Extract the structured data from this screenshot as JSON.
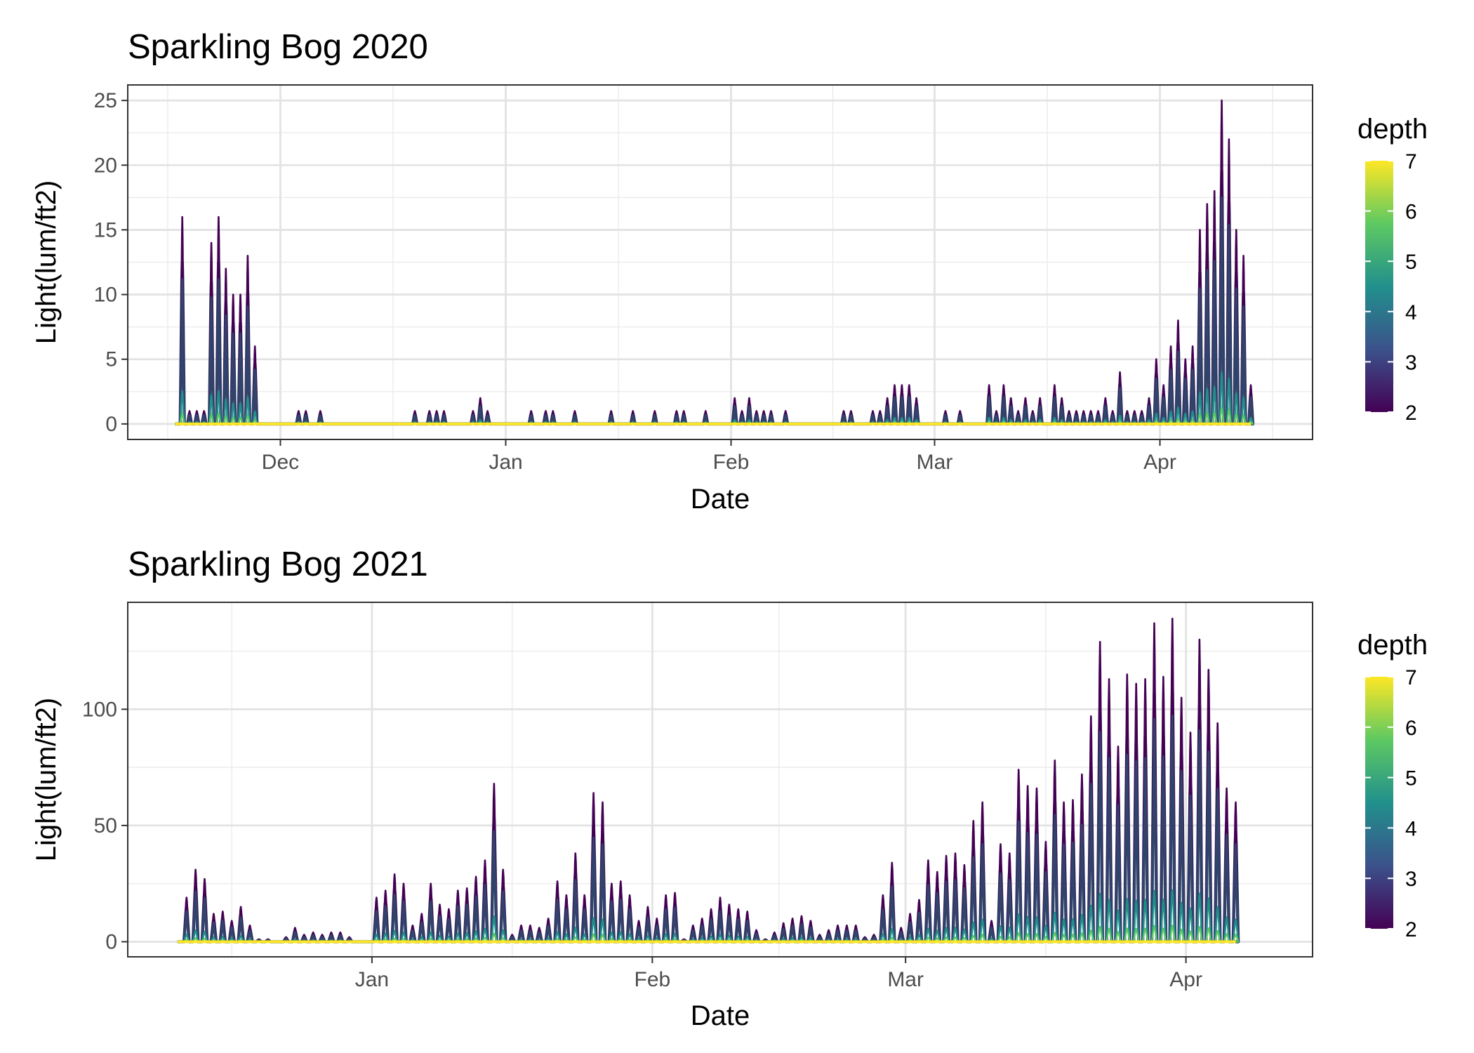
{
  "chart_data": [
    {
      "type": "line",
      "title": "Sparkling Bog 2020",
      "xlabel": "Date",
      "ylabel": "Light(lum/ft2)",
      "x_range": [
        "2020-11-10",
        "2021-04-22"
      ],
      "ylim": [
        -1.2,
        26.2
      ],
      "x_ticks": [
        {
          "date": "2020-12-01",
          "label": "Dec"
        },
        {
          "date": "2021-01-01",
          "label": "Jan"
        },
        {
          "date": "2021-02-01",
          "label": "Feb"
        },
        {
          "date": "2021-03-01",
          "label": "Mar"
        },
        {
          "date": "2021-04-01",
          "label": "Apr"
        }
      ],
      "y_ticks": [
        0,
        5,
        10,
        15,
        20,
        25
      ],
      "grid": true,
      "legend": {
        "title": "depth",
        "type": "colorbar",
        "min": 2,
        "max": 7,
        "ticks": [
          2,
          3,
          4,
          5,
          6,
          7
        ],
        "palette": [
          "#440154",
          "#3b528b",
          "#21908c",
          "#5ec962",
          "#fde725"
        ]
      },
      "colors": {
        "depth_2": "#440154",
        "depth_3": "#31446b",
        "depth_4": "#21908c",
        "depth_5": "#5ec962",
        "depth_7": "#fde725"
      },
      "x_end": "2021-04-13",
      "peaks": [
        [
          "2020-11-17",
          16
        ],
        [
          "2020-11-18",
          1
        ],
        [
          "2020-11-19",
          1
        ],
        [
          "2020-11-20",
          1
        ],
        [
          "2020-11-21",
          14
        ],
        [
          "2020-11-22",
          16
        ],
        [
          "2020-11-23",
          12
        ],
        [
          "2020-11-24",
          10
        ],
        [
          "2020-11-25",
          10
        ],
        [
          "2020-11-26",
          13
        ],
        [
          "2020-11-27",
          6
        ],
        [
          "2020-12-03",
          1
        ],
        [
          "2020-12-04",
          1
        ],
        [
          "2020-12-06",
          1
        ],
        [
          "2020-12-19",
          1
        ],
        [
          "2020-12-21",
          1
        ],
        [
          "2020-12-22",
          1
        ],
        [
          "2020-12-23",
          1
        ],
        [
          "2020-12-27",
          1
        ],
        [
          "2020-12-28",
          2
        ],
        [
          "2020-12-29",
          1
        ],
        [
          "2021-01-04",
          1
        ],
        [
          "2021-01-06",
          1
        ],
        [
          "2021-01-07",
          1
        ],
        [
          "2021-01-10",
          1
        ],
        [
          "2021-01-15",
          1
        ],
        [
          "2021-01-18",
          1
        ],
        [
          "2021-01-21",
          1
        ],
        [
          "2021-01-24",
          1
        ],
        [
          "2021-01-25",
          1
        ],
        [
          "2021-01-28",
          1
        ],
        [
          "2021-02-01",
          2
        ],
        [
          "2021-02-02",
          1
        ],
        [
          "2021-02-03",
          2
        ],
        [
          "2021-02-04",
          1
        ],
        [
          "2021-02-05",
          1
        ],
        [
          "2021-02-06",
          1
        ],
        [
          "2021-02-08",
          1
        ],
        [
          "2021-02-16",
          1
        ],
        [
          "2021-02-17",
          1
        ],
        [
          "2021-02-20",
          1
        ],
        [
          "2021-02-21",
          1
        ],
        [
          "2021-02-22",
          2
        ],
        [
          "2021-02-23",
          3
        ],
        [
          "2021-02-24",
          3
        ],
        [
          "2021-02-25",
          3
        ],
        [
          "2021-02-26",
          2
        ],
        [
          "2021-03-02",
          1
        ],
        [
          "2021-03-04",
          1
        ],
        [
          "2021-03-08",
          3
        ],
        [
          "2021-03-09",
          1
        ],
        [
          "2021-03-10",
          3
        ],
        [
          "2021-03-11",
          2
        ],
        [
          "2021-03-12",
          1
        ],
        [
          "2021-03-13",
          2
        ],
        [
          "2021-03-14",
          1
        ],
        [
          "2021-03-15",
          2
        ],
        [
          "2021-03-17",
          3
        ],
        [
          "2021-03-18",
          2
        ],
        [
          "2021-03-19",
          1
        ],
        [
          "2021-03-20",
          1
        ],
        [
          "2021-03-21",
          1
        ],
        [
          "2021-03-22",
          1
        ],
        [
          "2021-03-23",
          1
        ],
        [
          "2021-03-24",
          2
        ],
        [
          "2021-03-25",
          1
        ],
        [
          "2021-03-26",
          4
        ],
        [
          "2021-03-27",
          1
        ],
        [
          "2021-03-28",
          1
        ],
        [
          "2021-03-29",
          1
        ],
        [
          "2021-03-30",
          2
        ],
        [
          "2021-03-31",
          5
        ],
        [
          "2021-04-01",
          3
        ],
        [
          "2021-04-02",
          6
        ],
        [
          "2021-04-03",
          8
        ],
        [
          "2021-04-04",
          5
        ],
        [
          "2021-04-05",
          6
        ],
        [
          "2021-04-06",
          15
        ],
        [
          "2021-04-07",
          17
        ],
        [
          "2021-04-08",
          18
        ],
        [
          "2021-04-09",
          25
        ],
        [
          "2021-04-10",
          22
        ],
        [
          "2021-04-11",
          15
        ],
        [
          "2021-04-12",
          13
        ],
        [
          "2021-04-13",
          3
        ]
      ]
    },
    {
      "type": "line",
      "title": "Sparkling Bog 2021",
      "xlabel": "Date",
      "ylabel": "Light(lum/ft2)",
      "x_range": [
        "2021-12-05",
        "2022-04-15"
      ],
      "ylim": [
        -6.5,
        146
      ],
      "x_ticks": [
        {
          "date": "2022-01-01",
          "label": "Jan"
        },
        {
          "date": "2022-02-01",
          "label": "Feb"
        },
        {
          "date": "2022-03-01",
          "label": "Mar"
        },
        {
          "date": "2022-04-01",
          "label": "Apr"
        }
      ],
      "y_ticks": [
        0,
        50,
        100
      ],
      "grid": true,
      "legend": {
        "title": "depth",
        "type": "colorbar",
        "min": 2,
        "max": 7,
        "ticks": [
          2,
          3,
          4,
          5,
          6,
          7
        ],
        "palette": [
          "#440154",
          "#3b528b",
          "#21908c",
          "#5ec962",
          "#fde725"
        ]
      },
      "colors": {
        "depth_2": "#440154",
        "depth_3": "#31446b",
        "depth_4": "#21908c",
        "depth_5": "#5ec962",
        "depth_7": "#fde725"
      },
      "x_end": "2022-04-06",
      "peaks": [
        [
          "2021-12-11",
          19
        ],
        [
          "2021-12-12",
          31
        ],
        [
          "2021-12-13",
          27
        ],
        [
          "2021-12-14",
          12
        ],
        [
          "2021-12-15",
          13
        ],
        [
          "2021-12-16",
          9
        ],
        [
          "2021-12-17",
          15
        ],
        [
          "2021-12-18",
          7
        ],
        [
          "2021-12-19",
          1
        ],
        [
          "2021-12-20",
          1
        ],
        [
          "2021-12-22",
          2
        ],
        [
          "2021-12-23",
          6
        ],
        [
          "2021-12-24",
          3
        ],
        [
          "2021-12-25",
          4
        ],
        [
          "2021-12-26",
          3
        ],
        [
          "2021-12-27",
          4
        ],
        [
          "2021-12-28",
          4
        ],
        [
          "2021-12-29",
          2
        ],
        [
          "2022-01-01",
          19
        ],
        [
          "2022-01-02",
          22
        ],
        [
          "2022-01-03",
          29
        ],
        [
          "2022-01-04",
          25
        ],
        [
          "2022-01-05",
          7
        ],
        [
          "2022-01-06",
          12
        ],
        [
          "2022-01-07",
          25
        ],
        [
          "2022-01-08",
          16
        ],
        [
          "2022-01-09",
          14
        ],
        [
          "2022-01-10",
          22
        ],
        [
          "2022-01-11",
          23
        ],
        [
          "2022-01-12",
          28
        ],
        [
          "2022-01-13",
          35
        ],
        [
          "2022-01-14",
          68
        ],
        [
          "2022-01-15",
          31
        ],
        [
          "2022-01-16",
          3
        ],
        [
          "2022-01-17",
          7
        ],
        [
          "2022-01-18",
          7
        ],
        [
          "2022-01-19",
          6
        ],
        [
          "2022-01-20",
          10
        ],
        [
          "2022-01-21",
          26
        ],
        [
          "2022-01-22",
          20
        ],
        [
          "2022-01-23",
          38
        ],
        [
          "2022-01-24",
          20
        ],
        [
          "2022-01-25",
          64
        ],
        [
          "2022-01-26",
          60
        ],
        [
          "2022-01-27",
          25
        ],
        [
          "2022-01-28",
          26
        ],
        [
          "2022-01-29",
          20
        ],
        [
          "2022-01-30",
          9
        ],
        [
          "2022-01-31",
          15
        ],
        [
          "2022-02-01",
          10
        ],
        [
          "2022-02-02",
          20
        ],
        [
          "2022-02-03",
          21
        ],
        [
          "2022-02-04",
          1
        ],
        [
          "2022-02-05",
          7
        ],
        [
          "2022-02-06",
          10
        ],
        [
          "2022-02-07",
          14
        ],
        [
          "2022-02-08",
          19
        ],
        [
          "2022-02-09",
          16
        ],
        [
          "2022-02-10",
          14
        ],
        [
          "2022-02-11",
          13
        ],
        [
          "2022-02-12",
          5
        ],
        [
          "2022-02-13",
          1
        ],
        [
          "2022-02-14",
          4
        ],
        [
          "2022-02-15",
          8
        ],
        [
          "2022-02-16",
          10
        ],
        [
          "2022-02-17",
          11
        ],
        [
          "2022-02-18",
          9
        ],
        [
          "2022-02-19",
          3
        ],
        [
          "2022-02-20",
          5
        ],
        [
          "2022-02-21",
          7
        ],
        [
          "2022-02-22",
          7
        ],
        [
          "2022-02-23",
          7
        ],
        [
          "2022-02-24",
          2
        ],
        [
          "2022-02-25",
          3
        ],
        [
          "2022-02-26",
          20
        ],
        [
          "2022-02-27",
          34
        ],
        [
          "2022-02-28",
          6
        ],
        [
          "2022-03-01",
          12
        ],
        [
          "2022-03-02",
          18
        ],
        [
          "2022-03-03",
          35
        ],
        [
          "2022-03-04",
          30
        ],
        [
          "2022-03-05",
          37
        ],
        [
          "2022-03-06",
          38
        ],
        [
          "2022-03-07",
          33
        ],
        [
          "2022-03-08",
          52
        ],
        [
          "2022-03-09",
          60
        ],
        [
          "2022-03-10",
          9
        ],
        [
          "2022-03-11",
          42
        ],
        [
          "2022-03-12",
          38
        ],
        [
          "2022-03-13",
          74
        ],
        [
          "2022-03-14",
          67
        ],
        [
          "2022-03-15",
          66
        ],
        [
          "2022-03-16",
          43
        ],
        [
          "2022-03-17",
          78
        ],
        [
          "2022-03-18",
          60
        ],
        [
          "2022-03-19",
          61
        ],
        [
          "2022-03-20",
          72
        ],
        [
          "2022-03-21",
          97
        ],
        [
          "2022-03-22",
          129
        ],
        [
          "2022-03-23",
          113
        ],
        [
          "2022-03-24",
          84
        ],
        [
          "2022-03-25",
          115
        ],
        [
          "2022-03-26",
          111
        ],
        [
          "2022-03-27",
          113
        ],
        [
          "2022-03-28",
          137
        ],
        [
          "2022-03-29",
          114
        ],
        [
          "2022-03-30",
          139
        ],
        [
          "2022-03-31",
          105
        ],
        [
          "2022-04-01",
          90
        ],
        [
          "2022-04-02",
          130
        ],
        [
          "2022-04-03",
          117
        ],
        [
          "2022-04-04",
          94
        ],
        [
          "2022-04-05",
          66
        ],
        [
          "2022-04-06",
          60
        ]
      ]
    }
  ]
}
